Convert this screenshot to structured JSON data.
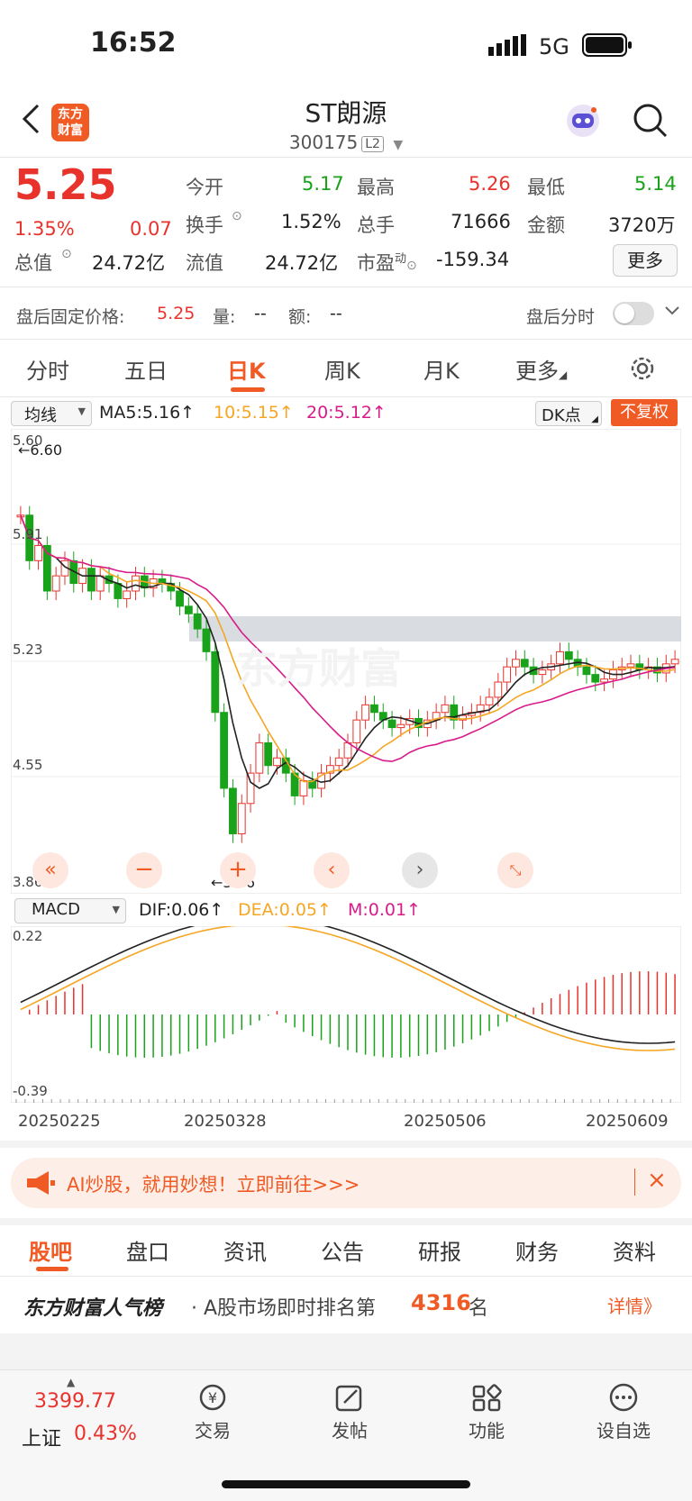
{
  "status_bar": {
    "time": "16:52",
    "network": "5G"
  },
  "header": {
    "title": "ST朗源",
    "code": "300175",
    "level": "L2"
  },
  "logo": {
    "line1": "东方",
    "line2": "财富"
  },
  "quote": {
    "price": "5.25",
    "change_pct": "1.35%",
    "change": "0.07",
    "open_label": "今开",
    "open": "5.17",
    "high_label": "最高",
    "high": "5.26",
    "low_label": "最低",
    "low": "5.14",
    "turnover_label": "换手",
    "turnover": "1.52%",
    "volume_label": "总手",
    "volume": "71666",
    "amount_label": "金额",
    "amount": "3720万",
    "mcap_label": "总值",
    "mcap": "24.72亿",
    "float_label": "流值",
    "float": "24.72亿",
    "pe_label": "市盈",
    "pe_sup": "动",
    "pe": "-159.34",
    "more": "更多"
  },
  "after_hours": {
    "label": "盘后固定价格:",
    "price": "5.25",
    "vol_label": "量:",
    "vol": "--",
    "amt_label": "额:",
    "amt": "--",
    "toggle_label": "盘后分时"
  },
  "tabs": [
    "分时",
    "五日",
    "日K",
    "周K",
    "月K",
    "更多"
  ],
  "chart": {
    "indicator": "均线",
    "ma5": "MA5:5.16↑",
    "ma10": "10:5.15↑",
    "ma20": "20:5.12↑",
    "dk": "DK点",
    "fq": "不复权",
    "y_labels": [
      "5.60",
      "5.91",
      "5.23",
      "4.55",
      "3.86"
    ],
    "high_mark": "6.60",
    "low_mark": "3.86",
    "watermark": "东方财富",
    "macd_label": "MACD",
    "dif": "DIF:0.06↑",
    "dea": "DEA:0.05↑",
    "m": "M:0.01↑",
    "macd_y": [
      "0.22",
      "-0.39"
    ],
    "dates": [
      "20250225",
      "20250328",
      "20250506",
      "20250609"
    ],
    "colors": {
      "up": "#e8322c",
      "down": "#18a31a",
      "ma5": "#222222",
      "ma10": "#f5a623",
      "ma20": "#d81b8a"
    }
  },
  "banner": {
    "text": "AI炒股，就用妙想！立即前往>>>"
  },
  "bottom_tabs": [
    "股吧",
    "盘口",
    "资讯",
    "公告",
    "研报",
    "财务",
    "资料"
  ],
  "popularity": {
    "brand": "东方财富人气榜",
    "text": "· A股市场即时排名第",
    "rank": "4316",
    "suffix": "名",
    "detail": "详情》"
  },
  "bottom_nav": {
    "index_value": "3399.77",
    "index_name": "上证",
    "index_pct": "0.43%",
    "items": [
      "交易",
      "发帖",
      "功能",
      "设自选"
    ]
  }
}
